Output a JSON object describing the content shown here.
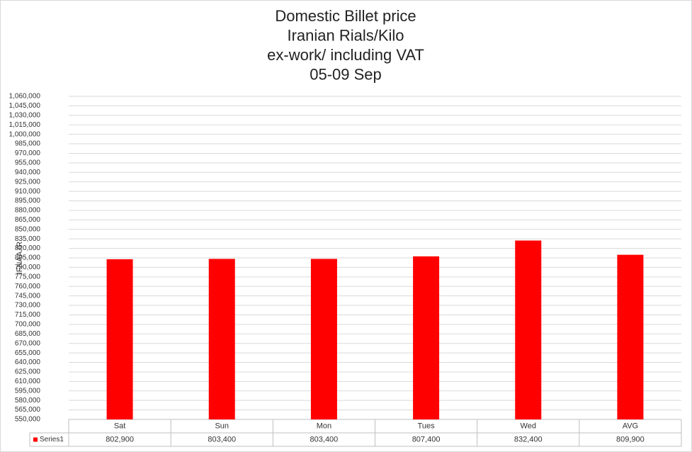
{
  "chart_data": {
    "type": "bar",
    "title": [
      "Domestic  Billet price",
      "Iranian Rials/Kilo",
      "ex-work/ including VAT",
      "05-09 Sep"
    ],
    "y_label": "IFNAA.IR",
    "categories": [
      "Sat",
      "Sun",
      "Mon",
      "Tues",
      "Wed",
      "AVG"
    ],
    "series": [
      {
        "name": "Series1",
        "color": "#ff0000",
        "values": [
          802900,
          803400,
          803400,
          807400,
          832400,
          809900
        ],
        "value_labels": [
          "802,900",
          "803,400",
          "803,400",
          "807,400",
          "832,400",
          "809,900"
        ]
      }
    ],
    "ylim": [
      550000,
      1060000
    ],
    "yticks": [
      {
        "value": 550000,
        "label": "550,000"
      },
      {
        "value": 565000,
        "label": "565,000"
      },
      {
        "value": 580000,
        "label": "580,000"
      },
      {
        "value": 595000,
        "label": "595,000"
      },
      {
        "value": 610000,
        "label": "610,000"
      },
      {
        "value": 625000,
        "label": "625,000"
      },
      {
        "value": 640000,
        "label": "640,000"
      },
      {
        "value": 655000,
        "label": "655,000"
      },
      {
        "value": 670000,
        "label": "670,000"
      },
      {
        "value": 685000,
        "label": "685,000"
      },
      {
        "value": 700000,
        "label": "700,000"
      },
      {
        "value": 715000,
        "label": "715,000"
      },
      {
        "value": 730000,
        "label": "730,000"
      },
      {
        "value": 745000,
        "label": "745,000"
      },
      {
        "value": 760000,
        "label": "760,000"
      },
      {
        "value": 775000,
        "label": "775,000"
      },
      {
        "value": 790000,
        "label": "790,000"
      },
      {
        "value": 805000,
        "label": "805,000"
      },
      {
        "value": 820000,
        "label": "820,000"
      },
      {
        "value": 835000,
        "label": "835,000"
      },
      {
        "value": 850000,
        "label": "850,000"
      },
      {
        "value": 865000,
        "label": "865,000"
      },
      {
        "value": 880000,
        "label": "880,000"
      },
      {
        "value": 895000,
        "label": "895,000"
      },
      {
        "value": 910000,
        "label": "910,000"
      },
      {
        "value": 925000,
        "label": "925,000"
      },
      {
        "value": 940000,
        "label": "940,000"
      },
      {
        "value": 955000,
        "label": "955,000"
      },
      {
        "value": 970000,
        "label": "970,000"
      },
      {
        "value": 985000,
        "label": "985,000"
      },
      {
        "value": 1000000,
        "label": "1,000,000"
      },
      {
        "value": 1015000,
        "label": "1,015,000"
      },
      {
        "value": 1030000,
        "label": "1,030,000"
      },
      {
        "value": 1045000,
        "label": "1,045,000"
      },
      {
        "value": 1060000,
        "label": "1,060,000"
      }
    ],
    "grid": true
  }
}
